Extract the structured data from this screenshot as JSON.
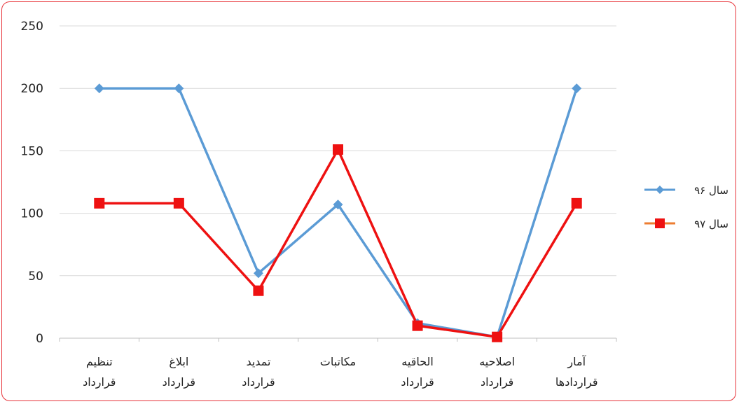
{
  "chart_data": {
    "type": "line",
    "title": "",
    "xlabel": "",
    "ylabel": "",
    "ylim": [
      0,
      250
    ],
    "yticks": [
      "0",
      "50",
      "100",
      "150",
      "200",
      "250"
    ],
    "grid": true,
    "legend_position": "right",
    "categories": [
      [
        "تنظیم",
        "قرارداد"
      ],
      [
        "ابلاغ",
        "قرارداد"
      ],
      [
        "تمدید",
        "قرارداد"
      ],
      [
        "مکاتبات",
        ""
      ],
      [
        "الحاقیه",
        "قرارداد"
      ],
      [
        "اصلاحیه",
        "قرارداد"
      ],
      [
        "آمار",
        "قراردادها"
      ]
    ],
    "series": [
      {
        "name": "سال ۹۶",
        "color": "#5b9bd5",
        "marker": "diamond",
        "values": [
          200,
          200,
          52,
          107,
          12,
          1,
          200
        ]
      },
      {
        "name": "سال ۹۷",
        "color": "#ee1111",
        "legend_color": "#ed7d31",
        "marker": "square",
        "values": [
          108,
          108,
          38,
          151,
          10,
          1,
          108
        ]
      }
    ]
  }
}
